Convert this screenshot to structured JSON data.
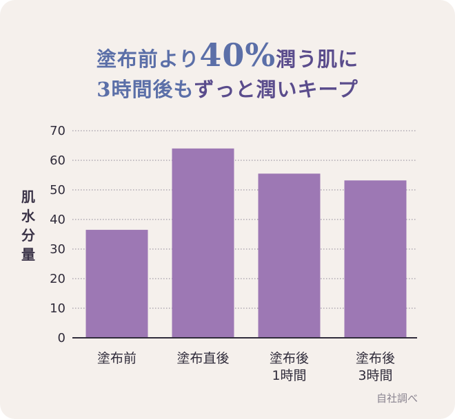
{
  "title": {
    "line1_a": "塗布前より",
    "line1_big": "40%",
    "line1_b": "潤う肌に",
    "line2_num": "3",
    "line2_a": "時間後も",
    "line2_b": "ずっと潤いキープ"
  },
  "ylabel": "肌水分量",
  "source": "自社調べ",
  "colors": {
    "bar": "#9d78b4",
    "axis": "#2f2b3a",
    "grid": "#8a8595",
    "title": "#5b6fa8",
    "title_highlight": "#5a4c8c",
    "background": "#f5f0ec"
  },
  "chart_data": {
    "type": "bar",
    "categories": [
      [
        "塗布前"
      ],
      [
        "塗布直後"
      ],
      [
        "塗布後",
        "1時間"
      ],
      [
        "塗布後",
        "3時間"
      ]
    ],
    "values": [
      36.5,
      64,
      55.5,
      53.2
    ],
    "ylim": [
      0,
      70
    ],
    "yticks": [
      "0",
      "10",
      "20",
      "30",
      "40",
      "50",
      "60",
      "70"
    ],
    "ylabel": "肌水分量",
    "grid": "dotted horizontal",
    "legend": "none"
  }
}
